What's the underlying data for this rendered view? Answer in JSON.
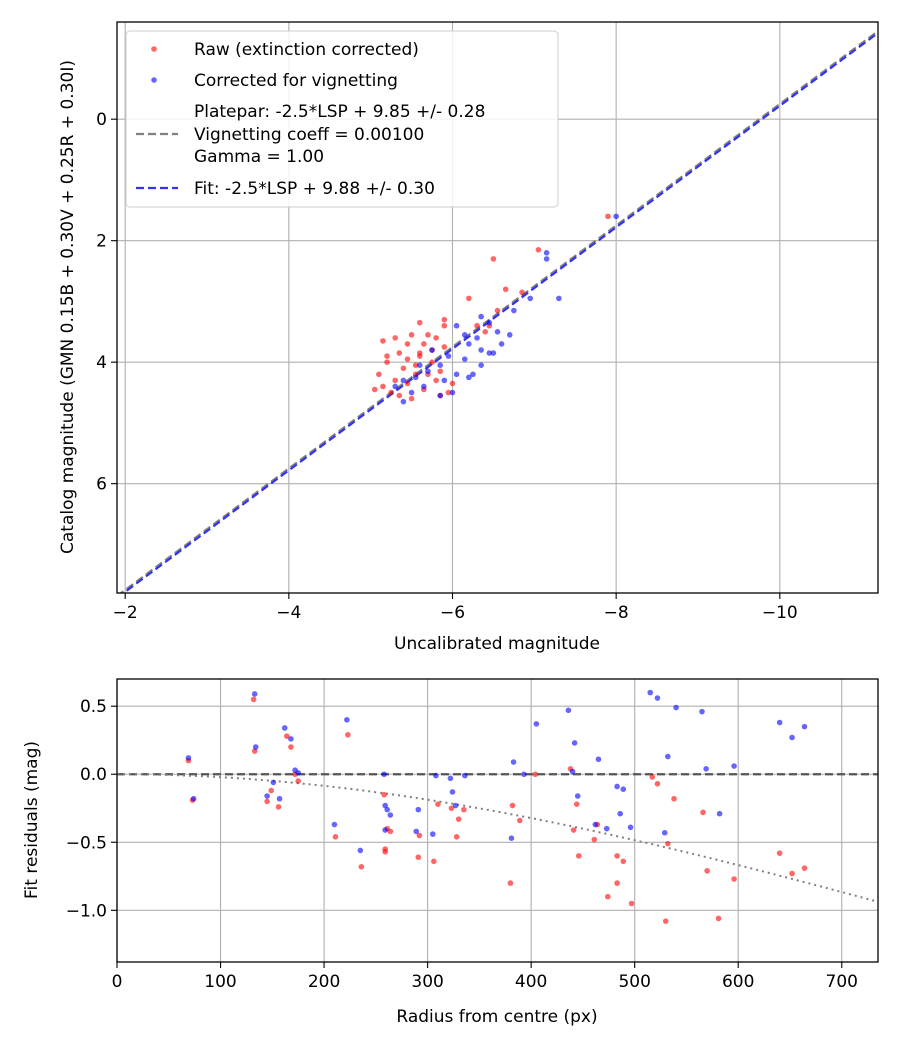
{
  "chart_data": [
    {
      "type": "scatter",
      "xlabel": "Uncalibrated magnitude",
      "ylabel": "Catalog magnitude (GMN 0.15B + 0.30V + 0.25R + 0.30I)",
      "xlim": [
        -1.9,
        -11.2
      ],
      "ylim": [
        7.8,
        -1.6
      ],
      "xticks": [
        -2,
        -4,
        -6,
        -8,
        -10
      ],
      "xtick_labels": [
        "−2",
        "−4",
        "−6",
        "−8",
        "−10"
      ],
      "yticks": [
        0,
        2,
        4,
        6
      ],
      "ytick_labels": [
        "0",
        "2",
        "4",
        "6"
      ],
      "grid": true,
      "legend_position": "top-left",
      "legend": [
        {
          "kind": "marker",
          "color": "#ff0000",
          "lines": [
            "Raw (extinction corrected)"
          ]
        },
        {
          "kind": "marker",
          "color": "#0000ff",
          "lines": [
            "Corrected for vignetting"
          ]
        },
        {
          "kind": "line",
          "color": "#808080",
          "lines": [
            "Platepar: -2.5*LSP + 9.85 +/- 0.28",
            "Vignetting coeff = 0.00100",
            "Gamma = 1.00"
          ]
        },
        {
          "kind": "line",
          "color": "#3333ee",
          "lines": [
            "Fit: -2.5*LSP + 9.88 +/- 0.30"
          ]
        }
      ],
      "lines": [
        {
          "name": "Platepar",
          "color": "#808080",
          "dash": "dashed",
          "points": [
            [
              -1.9,
              7.85
            ],
            [
              -11.2,
              -1.45
            ]
          ]
        },
        {
          "name": "Fit",
          "color": "#3333ee",
          "dash": "dashed",
          "points": [
            [
              -1.9,
              7.88
            ],
            [
              -11.2,
              -1.42
            ]
          ]
        }
      ],
      "series": [
        {
          "name": "Raw (extinction corrected)",
          "color": "#ff0000",
          "points": [
            [
              -7.9,
              1.6
            ],
            [
              -7.05,
              2.15
            ],
            [
              -6.5,
              2.3
            ],
            [
              -6.65,
              2.8
            ],
            [
              -6.85,
              2.85
            ],
            [
              -6.45,
              3.4
            ],
            [
              -6.2,
              2.95
            ],
            [
              -6.55,
              3.15
            ],
            [
              -6.3,
              3.4
            ],
            [
              -6.4,
              3.5
            ],
            [
              -5.9,
              3.4
            ],
            [
              -5.8,
              3.6
            ],
            [
              -5.65,
              3.7
            ],
            [
              -5.5,
              3.55
            ],
            [
              -5.45,
              3.7
            ],
            [
              -5.3,
              3.6
            ],
            [
              -5.15,
              3.65
            ],
            [
              -5.35,
              3.85
            ],
            [
              -5.6,
              3.9
            ],
            [
              -5.75,
              3.8
            ],
            [
              -5.2,
              4.0
            ],
            [
              -5.1,
              4.2
            ],
            [
              -5.4,
              4.1
            ],
            [
              -5.55,
              4.2
            ],
            [
              -5.7,
              4.2
            ],
            [
              -5.85,
              4.15
            ],
            [
              -5.3,
              4.3
            ],
            [
              -5.15,
              4.4
            ],
            [
              -5.05,
              4.45
            ],
            [
              -5.25,
              4.5
            ],
            [
              -5.45,
              4.35
            ],
            [
              -5.65,
              4.45
            ],
            [
              -5.8,
              4.3
            ],
            [
              -5.95,
              4.5
            ],
            [
              -5.75,
              4.0
            ],
            [
              -5.55,
              4.05
            ],
            [
              -5.35,
              4.55
            ],
            [
              -5.9,
              3.75
            ],
            [
              -5.9,
              3.3
            ],
            [
              -5.45,
              3.95
            ],
            [
              -5.6,
              3.85
            ],
            [
              -5.2,
              3.9
            ],
            [
              -5.85,
              4.55
            ],
            [
              -6.0,
              4.35
            ],
            [
              -5.7,
              3.55
            ],
            [
              -5.6,
              3.35
            ],
            [
              -5.5,
              4.6
            ]
          ]
        },
        {
          "name": "Corrected for vignetting",
          "color": "#0000ff",
          "points": [
            [
              -8.0,
              1.6
            ],
            [
              -7.15,
              2.2
            ],
            [
              -7.15,
              2.3
            ],
            [
              -7.3,
              2.95
            ],
            [
              -6.95,
              2.95
            ],
            [
              -6.75,
              3.15
            ],
            [
              -6.7,
              3.55
            ],
            [
              -6.6,
              3.7
            ],
            [
              -6.35,
              3.8
            ],
            [
              -6.55,
              3.5
            ],
            [
              -6.2,
              3.7
            ],
            [
              -6.15,
              3.55
            ],
            [
              -6.05,
              3.4
            ],
            [
              -6.3,
              3.6
            ],
            [
              -6.45,
              3.85
            ],
            [
              -6.35,
              4.05
            ],
            [
              -6.25,
              4.2
            ],
            [
              -5.95,
              3.9
            ],
            [
              -5.85,
              4.05
            ],
            [
              -5.7,
              4.15
            ],
            [
              -5.55,
              4.25
            ],
            [
              -5.9,
              4.3
            ],
            [
              -6.05,
              4.2
            ],
            [
              -5.65,
              4.4
            ],
            [
              -5.4,
              4.3
            ],
            [
              -5.3,
              4.4
            ],
            [
              -5.5,
              4.5
            ],
            [
              -5.75,
              3.8
            ],
            [
              -6.15,
              3.95
            ],
            [
              -6.5,
              3.85
            ],
            [
              -6.0,
              4.5
            ],
            [
              -5.85,
              4.55
            ],
            [
              -6.2,
              4.25
            ],
            [
              -5.6,
              4.05
            ],
            [
              -5.4,
              4.65
            ],
            [
              -6.45,
              3.35
            ],
            [
              -6.35,
              3.25
            ]
          ]
        }
      ]
    },
    {
      "type": "scatter",
      "xlabel": "Radius from centre (px)",
      "ylabel": "Fit residuals (mag)",
      "xlim": [
        0,
        735
      ],
      "ylim": [
        -1.38,
        0.7
      ],
      "xticks": [
        0,
        100,
        200,
        300,
        400,
        500,
        600,
        700
      ],
      "xtick_labels": [
        "0",
        "100",
        "200",
        "300",
        "400",
        "500",
        "600",
        "700"
      ],
      "yticks": [
        0.5,
        0.0,
        -0.5,
        -1.0
      ],
      "ytick_labels": [
        "0.5",
        "0.0",
        "−0.5",
        "−1.0"
      ],
      "grid": true,
      "reference_line": {
        "y": 0.0,
        "color": "#555555",
        "dash": "dashed"
      },
      "curve": {
        "name": "Vignetting",
        "color": "#808080",
        "dash": "dotted",
        "coeff": 0.001
      },
      "series": [
        {
          "name": "Raw (extinction corrected)",
          "color": "#ff0000",
          "points": [
            [
              69,
              0.1
            ],
            [
              73,
              -0.19
            ],
            [
              132,
              0.55
            ],
            [
              133,
              0.17
            ],
            [
              145,
              -0.2
            ],
            [
              149,
              -0.12
            ],
            [
              156,
              -0.24
            ],
            [
              164,
              0.28
            ],
            [
              168,
              0.2
            ],
            [
              172,
              0.0
            ],
            [
              175,
              -0.05
            ],
            [
              211,
              -0.46
            ],
            [
              223,
              0.29
            ],
            [
              236,
              -0.68
            ],
            [
              258,
              -0.15
            ],
            [
              259,
              -0.55
            ],
            [
              259,
              -0.57
            ],
            [
              261,
              -0.4
            ],
            [
              264,
              -0.42
            ],
            [
              291,
              -0.61
            ],
            [
              292,
              -0.45
            ],
            [
              306,
              -0.64
            ],
            [
              310,
              -0.22
            ],
            [
              323,
              -0.25
            ],
            [
              328,
              -0.46
            ],
            [
              330,
              -0.33
            ],
            [
              335,
              -0.26
            ],
            [
              380,
              -0.8
            ],
            [
              382,
              -0.23
            ],
            [
              389,
              -0.34
            ],
            [
              404,
              0.0
            ],
            [
              438,
              0.04
            ],
            [
              441,
              -0.41
            ],
            [
              444,
              -0.22
            ],
            [
              446,
              -0.6
            ],
            [
              464,
              -0.37
            ],
            [
              461,
              -0.48
            ],
            [
              474,
              -0.9
            ],
            [
              483,
              -0.8
            ],
            [
              483,
              -0.6
            ],
            [
              489,
              -0.64
            ],
            [
              497,
              -0.95
            ],
            [
              517,
              -0.02
            ],
            [
              522,
              -0.07
            ],
            [
              530,
              -1.08
            ],
            [
              532,
              -0.51
            ],
            [
              538,
              -0.18
            ],
            [
              566,
              -0.28
            ],
            [
              570,
              -0.71
            ],
            [
              581,
              -1.06
            ],
            [
              596,
              -0.77
            ],
            [
              640,
              -0.58
            ],
            [
              652,
              -0.73
            ],
            [
              664,
              -0.69
            ]
          ]
        },
        {
          "name": "Corrected for vignetting",
          "color": "#0000ff",
          "points": [
            [
              69,
              0.12
            ],
            [
              74,
              -0.18
            ],
            [
              133,
              0.59
            ],
            [
              134,
              0.2
            ],
            [
              145,
              -0.16
            ],
            [
              151,
              -0.06
            ],
            [
              157,
              -0.18
            ],
            [
              162,
              0.34
            ],
            [
              168,
              0.26
            ],
            [
              172,
              0.03
            ],
            [
              175,
              0.01
            ],
            [
              210,
              -0.37
            ],
            [
              222,
              0.4
            ],
            [
              235,
              -0.56
            ],
            [
              258,
              0.0
            ],
            [
              259,
              -0.23
            ],
            [
              259,
              -0.41
            ],
            [
              261,
              -0.26
            ],
            [
              264,
              -0.3
            ],
            [
              289,
              -0.42
            ],
            [
              291,
              -0.26
            ],
            [
              305,
              -0.44
            ],
            [
              308,
              -0.01
            ],
            [
              322,
              -0.03
            ],
            [
              324,
              -0.13
            ],
            [
              327,
              -0.23
            ],
            [
              336,
              -0.01
            ],
            [
              381,
              -0.47
            ],
            [
              383,
              0.09
            ],
            [
              393,
              0.0
            ],
            [
              405,
              0.37
            ],
            [
              436,
              0.47
            ],
            [
              440,
              0.02
            ],
            [
              442,
              0.23
            ],
            [
              445,
              -0.16
            ],
            [
              462,
              -0.37
            ],
            [
              465,
              0.11
            ],
            [
              473,
              -0.4
            ],
            [
              483,
              -0.09
            ],
            [
              486,
              -0.29
            ],
            [
              489,
              -0.11
            ],
            [
              496,
              -0.39
            ],
            [
              515,
              0.6
            ],
            [
              522,
              0.56
            ],
            [
              529,
              -0.43
            ],
            [
              532,
              0.13
            ],
            [
              540,
              0.49
            ],
            [
              565,
              0.46
            ],
            [
              569,
              0.04
            ],
            [
              582,
              -0.29
            ],
            [
              596,
              0.06
            ],
            [
              640,
              0.38
            ],
            [
              652,
              0.27
            ],
            [
              664,
              0.35
            ]
          ]
        }
      ]
    }
  ]
}
